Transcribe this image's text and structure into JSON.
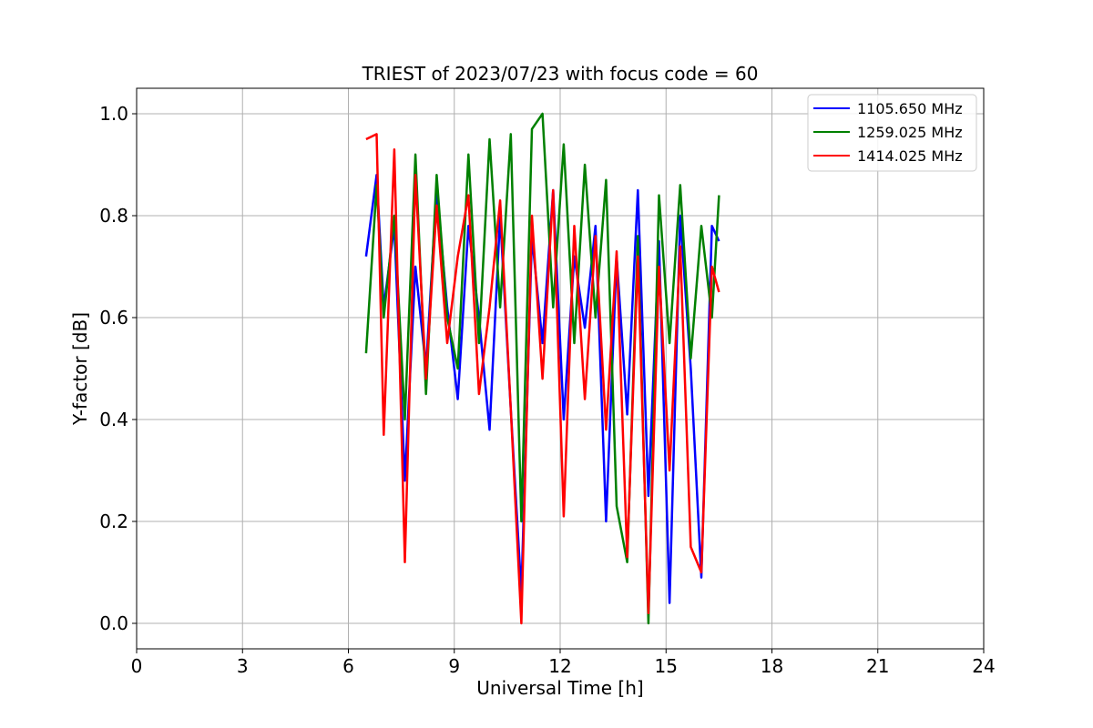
{
  "chart_data": {
    "type": "line",
    "title": "TRIEST of 2023/07/23 with focus code = 60",
    "xlabel": "Universal Time [h]",
    "ylabel": "Y-factor [dB]",
    "xlim": [
      0,
      24
    ],
    "ylim": [
      -0.05,
      1.05
    ],
    "xticks": [
      0,
      3,
      6,
      9,
      12,
      15,
      18,
      21,
      24
    ],
    "xtick_labels": [
      "0",
      "3",
      "6",
      "9",
      "12",
      "15",
      "18",
      "21",
      "24"
    ],
    "yticks": [
      0.0,
      0.2,
      0.4,
      0.6,
      0.8,
      1.0
    ],
    "ytick_labels": [
      "0.0",
      "0.2",
      "0.4",
      "0.6",
      "0.8",
      "1.0"
    ],
    "grid": true,
    "legend_position": "top-right",
    "series": [
      {
        "name": "1105.650 MHz",
        "color": "#0000ff",
        "x": [
          6.5,
          6.8,
          7.0,
          7.3,
          7.6,
          7.9,
          8.2,
          8.5,
          8.8,
          9.1,
          9.4,
          9.7,
          10.0,
          10.3,
          10.6,
          10.9,
          11.2,
          11.5,
          11.8,
          12.1,
          12.4,
          12.7,
          13.0,
          13.3,
          13.6,
          13.9,
          14.2,
          14.5,
          14.8,
          15.1,
          15.4,
          15.7,
          16.0,
          16.3,
          16.5
        ],
        "values": [
          0.72,
          0.88,
          0.62,
          0.78,
          0.28,
          0.7,
          0.5,
          0.85,
          0.62,
          0.44,
          0.78,
          0.6,
          0.38,
          0.8,
          0.42,
          0.06,
          0.76,
          0.55,
          0.85,
          0.4,
          0.72,
          0.58,
          0.78,
          0.2,
          0.72,
          0.41,
          0.85,
          0.25,
          0.75,
          0.04,
          0.8,
          0.5,
          0.09,
          0.78,
          0.75
        ]
      },
      {
        "name": "1259.025 MHz",
        "color": "#008000",
        "x": [
          6.5,
          6.8,
          7.0,
          7.3,
          7.6,
          7.9,
          8.2,
          8.5,
          8.8,
          9.1,
          9.4,
          9.7,
          10.0,
          10.3,
          10.6,
          10.9,
          11.2,
          11.5,
          11.8,
          12.1,
          12.4,
          12.7,
          13.0,
          13.3,
          13.6,
          13.9,
          14.2,
          14.5,
          14.8,
          15.1,
          15.4,
          15.7,
          16.0,
          16.3,
          16.5
        ],
        "values": [
          0.53,
          0.86,
          0.6,
          0.8,
          0.4,
          0.92,
          0.45,
          0.88,
          0.6,
          0.5,
          0.92,
          0.55,
          0.95,
          0.62,
          0.96,
          0.2,
          0.97,
          1.0,
          0.62,
          0.94,
          0.55,
          0.9,
          0.6,
          0.87,
          0.23,
          0.12,
          0.76,
          0.0,
          0.84,
          0.55,
          0.86,
          0.52,
          0.78,
          0.6,
          0.84
        ]
      },
      {
        "name": "1414.025 MHz",
        "color": "#ff0000",
        "x": [
          6.5,
          6.8,
          7.0,
          7.3,
          7.6,
          7.9,
          8.2,
          8.5,
          8.8,
          9.1,
          9.4,
          9.7,
          10.0,
          10.3,
          10.6,
          10.9,
          11.2,
          11.5,
          11.8,
          12.1,
          12.4,
          12.7,
          13.0,
          13.3,
          13.6,
          13.9,
          14.2,
          14.5,
          14.8,
          15.1,
          15.4,
          15.7,
          16.0,
          16.3,
          16.5
        ],
        "values": [
          0.95,
          0.96,
          0.37,
          0.93,
          0.12,
          0.88,
          0.48,
          0.82,
          0.55,
          0.72,
          0.84,
          0.45,
          0.62,
          0.83,
          0.42,
          0.0,
          0.8,
          0.48,
          0.85,
          0.21,
          0.78,
          0.44,
          0.76,
          0.38,
          0.73,
          0.13,
          0.72,
          0.02,
          0.7,
          0.3,
          0.74,
          0.15,
          0.1,
          0.7,
          0.65
        ]
      }
    ]
  }
}
